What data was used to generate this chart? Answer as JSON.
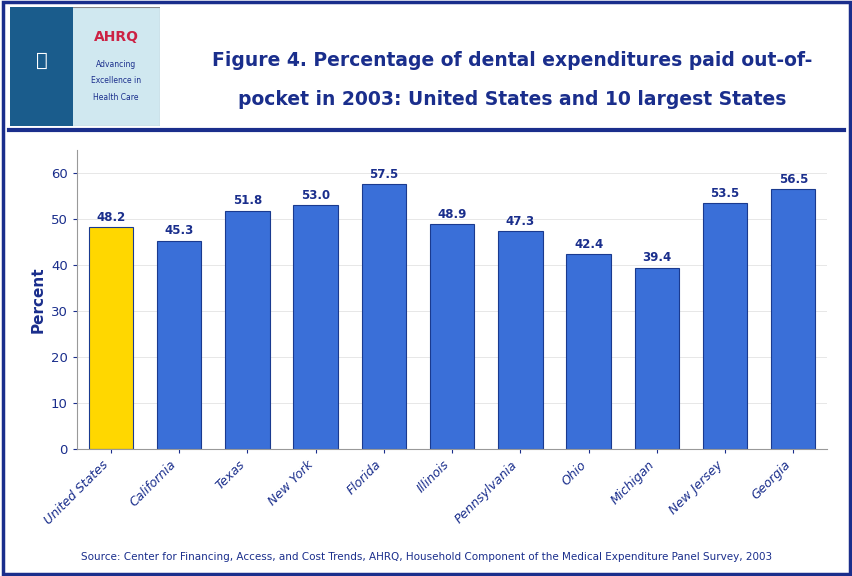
{
  "categories": [
    "United States",
    "California",
    "Texas",
    "New York",
    "Florida",
    "Illinois",
    "Pennsylvania",
    "Ohio",
    "Michigan",
    "New Jersey",
    "Georgia"
  ],
  "values": [
    48.2,
    45.3,
    51.8,
    53.0,
    57.5,
    48.9,
    47.3,
    42.4,
    39.4,
    53.5,
    56.5
  ],
  "bar_colors": [
    "#FFD700",
    "#3A6FD8",
    "#3A6FD8",
    "#3A6FD8",
    "#3A6FD8",
    "#3A6FD8",
    "#3A6FD8",
    "#3A6FD8",
    "#3A6FD8",
    "#3A6FD8",
    "#3A6FD8"
  ],
  "title_line1": "Figure 4. Percentage of dental expenditures paid out-of-",
  "title_line2": "pocket in 2003: United States and 10 largest States",
  "ylabel": "Percent",
  "ylim": [
    0,
    65
  ],
  "yticks": [
    0,
    10,
    20,
    30,
    40,
    50,
    60
  ],
  "source_text": "Source: Center for Financing, Access, and Cost Trends, AHRQ, Household Component of the Medical Expenditure Panel Survey, 2003",
  "title_color": "#1A2E8C",
  "label_color": "#1A2E8C",
  "bar_edge_color": "#1A3A8F",
  "background_color": "#FFFFFF",
  "header_bg_color": "#FFFFFF",
  "plot_bg_color": "#FFFFFF",
  "outer_border_color": "#1A2E8C",
  "separator_color": "#1A2E8C",
  "value_label_fontsize": 8.5,
  "ylabel_fontsize": 11,
  "xlabel_fontsize": 9,
  "title_fontsize": 13.5
}
